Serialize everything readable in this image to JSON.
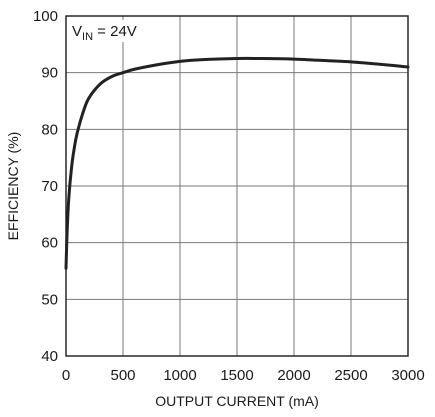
{
  "chart_data": {
    "type": "line",
    "title": "",
    "xlabel": "OUTPUT CURRENT (mA)",
    "ylabel": "EFFICIENCY (%)",
    "xlim": [
      0,
      3000
    ],
    "ylim": [
      40,
      100
    ],
    "x_ticks": [
      0,
      500,
      1000,
      1500,
      2000,
      2500,
      3000
    ],
    "y_ticks": [
      40,
      50,
      60,
      70,
      80,
      90,
      100
    ],
    "grid": true,
    "annotation": {
      "label_main": "V",
      "label_sub": "IN",
      "label_value": " = 24V"
    },
    "series": [
      {
        "x": [
          0,
          10,
          25,
          50,
          75,
          100,
          150,
          200,
          300,
          400,
          500,
          600,
          800,
          1000,
          1200,
          1500,
          1700,
          2000,
          2300,
          2500,
          2800,
          3000
        ],
        "y": [
          55.5,
          62,
          68,
          73.5,
          77,
          79.5,
          83,
          85.5,
          88,
          89.3,
          90,
          90.6,
          91.4,
          92,
          92.3,
          92.5,
          92.5,
          92.4,
          92.1,
          91.9,
          91.4,
          91
        ]
      }
    ]
  }
}
